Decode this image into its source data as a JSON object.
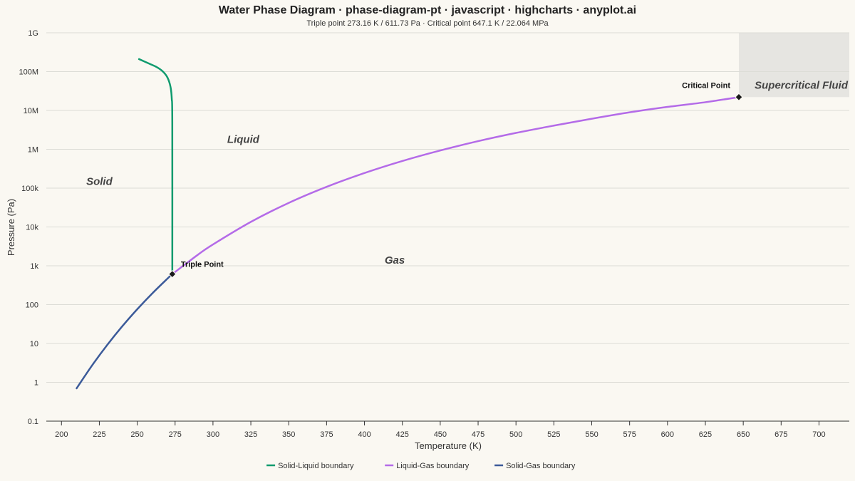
{
  "chart_data": {
    "type": "line",
    "title": "Water Phase Diagram · phase-diagram-pt · javascript · highcharts · anyplot.ai",
    "subtitle": "Triple point 273.16 K / 611.73 Pa · Critical point 647.1 K / 22.064 MPa",
    "xlabel": "Temperature (K)",
    "ylabel": "Pressure (Pa)",
    "x_scale": "linear",
    "y_scale": "log",
    "xlim": [
      190,
      720
    ],
    "ylim": [
      0.1,
      1000000000
    ],
    "x_ticks": [
      200,
      225,
      250,
      275,
      300,
      325,
      350,
      375,
      400,
      425,
      450,
      475,
      500,
      525,
      550,
      575,
      600,
      625,
      650,
      675,
      700
    ],
    "y_ticks": [
      {
        "value": 0.1,
        "label": "0.1"
      },
      {
        "value": 1,
        "label": "1"
      },
      {
        "value": 10,
        "label": "10"
      },
      {
        "value": 100,
        "label": "100"
      },
      {
        "value": 1000,
        "label": "1k"
      },
      {
        "value": 10000,
        "label": "10k"
      },
      {
        "value": 100000,
        "label": "100k"
      },
      {
        "value": 1000000,
        "label": "1M"
      },
      {
        "value": 10000000,
        "label": "10M"
      },
      {
        "value": 100000000,
        "label": "100M"
      },
      {
        "value": 1000000000,
        "label": "1G"
      }
    ],
    "grid": true,
    "legend_position": "bottom-center",
    "series": [
      {
        "name": "Solid-Liquid boundary",
        "color": "#0f9b6e",
        "points": [
          [
            273.16,
            611.73
          ],
          [
            273.15,
            5000000
          ],
          [
            272.8,
            20000000
          ],
          [
            272.0,
            40000000
          ],
          [
            270.0,
            70000000
          ],
          [
            267.0,
            100000000
          ],
          [
            263.0,
            130000000
          ],
          [
            258.0,
            160000000
          ],
          [
            251.2,
            210000000
          ]
        ]
      },
      {
        "name": "Liquid-Gas boundary",
        "color": "#b46be8",
        "points": [
          [
            273.16,
            611.73
          ],
          [
            290,
            1920
          ],
          [
            300,
            3540
          ],
          [
            325,
            13500
          ],
          [
            350,
            41700
          ],
          [
            375,
            108000
          ],
          [
            400,
            245000
          ],
          [
            425,
            500000
          ],
          [
            450,
            932000
          ],
          [
            475,
            1620000
          ],
          [
            500,
            2640000
          ],
          [
            525,
            4070000
          ],
          [
            550,
            6120000
          ],
          [
            575,
            8950000
          ],
          [
            600,
            12340000
          ],
          [
            625,
            16300000
          ],
          [
            647.1,
            22064000
          ]
        ]
      },
      {
        "name": "Solid-Gas boundary",
        "color": "#3b5a99",
        "points": [
          [
            210,
            0.7
          ],
          [
            220,
            2.65
          ],
          [
            230,
            8.94
          ],
          [
            240,
            27.3
          ],
          [
            250,
            76.0
          ],
          [
            260,
            195.8
          ],
          [
            270,
            470
          ],
          [
            273.16,
            611.73
          ]
        ]
      }
    ],
    "points": [
      {
        "label": "Triple Point",
        "x": 273.16,
        "y": 611.73
      },
      {
        "label": "Critical Point",
        "x": 647.1,
        "y": 22064000
      }
    ],
    "regions": [
      {
        "label": "Solid",
        "x": 225,
        "y": 150000
      },
      {
        "label": "Liquid",
        "x": 320,
        "y": 1800000
      },
      {
        "label": "Gas",
        "x": 420,
        "y": 1400
      },
      {
        "label": "Supercritical Fluid",
        "x": 685,
        "y": 50000000
      }
    ],
    "supercritical_box": {
      "x_from": 647.1,
      "y_from": 22064000
    },
    "box_color": "#e6e5e1"
  }
}
